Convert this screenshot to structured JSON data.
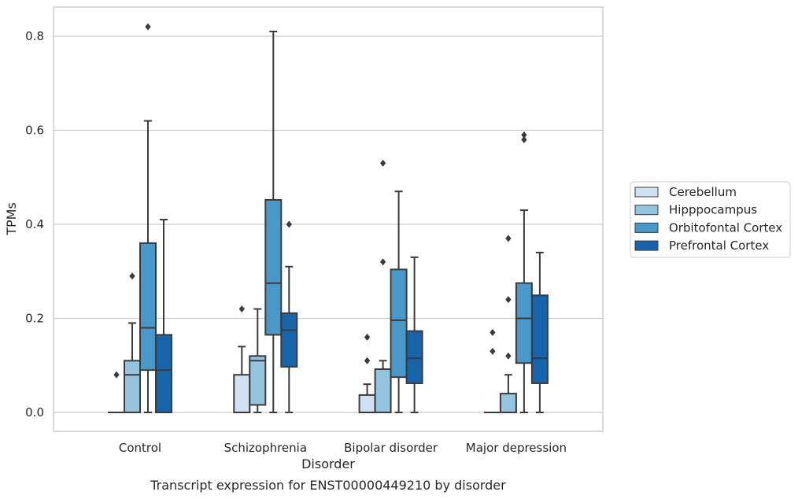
{
  "chart_data": {
    "type": "box",
    "xlabel": "Disorder",
    "ylabel": "TPMs",
    "caption": "Transcript expression for ENST00000449210 by disorder",
    "ylim": [
      -0.04,
      0.86
    ],
    "yticks": [
      0.0,
      0.2,
      0.4,
      0.6,
      0.8
    ],
    "ytick_labels": [
      "0.0",
      "0.2",
      "0.4",
      "0.6",
      "0.8"
    ],
    "grid": true,
    "legend_position": "right",
    "categories": [
      "Control",
      "Schizophrenia",
      "Bipolar disorder",
      "Major depression"
    ],
    "series": [
      {
        "name": "Cerebellum",
        "color": "#d0e1f2",
        "boxes": [
          {
            "whislo": 0,
            "q1": 0,
            "med": 0,
            "q3": 0,
            "whishi": 0,
            "fliers": [
              0.08
            ]
          },
          {
            "whislo": 0,
            "q1": 0,
            "med": 0,
            "q3": 0.08,
            "whishi": 0.14,
            "fliers": [
              0.22
            ]
          },
          {
            "whislo": 0,
            "q1": 0,
            "med": 0,
            "q3": 0.037,
            "whishi": 0.06,
            "fliers": [
              0.11,
              0.16
            ]
          },
          {
            "whislo": 0,
            "q1": 0,
            "med": 0,
            "q3": 0,
            "whishi": 0,
            "fliers": [
              0.13,
              0.17
            ]
          }
        ]
      },
      {
        "name": "Hipppocampus",
        "color": "#94c4df",
        "boxes": [
          {
            "whislo": 0,
            "q1": 0,
            "med": 0.08,
            "q3": 0.11,
            "whishi": 0.19,
            "fliers": [
              0.29
            ]
          },
          {
            "whislo": 0,
            "q1": 0.016,
            "med": 0.11,
            "q3": 0.12,
            "whishi": 0.22,
            "fliers": []
          },
          {
            "whislo": 0,
            "q1": 0,
            "med": 0,
            "q3": 0.092,
            "whishi": 0.11,
            "fliers": [
              0.32,
              0.53
            ]
          },
          {
            "whislo": 0,
            "q1": 0,
            "med": 0,
            "q3": 0.04,
            "whishi": 0.08,
            "fliers": [
              0.12,
              0.24,
              0.37
            ]
          }
        ]
      },
      {
        "name": "Orbitofontal Cortex",
        "color": "#4a98c9",
        "boxes": [
          {
            "whislo": 0,
            "q1": 0.09,
            "med": 0.18,
            "q3": 0.36,
            "whishi": 0.62,
            "fliers": [
              0.82
            ]
          },
          {
            "whislo": 0,
            "q1": 0.165,
            "med": 0.275,
            "q3": 0.452,
            "whishi": 0.81,
            "fliers": []
          },
          {
            "whislo": 0,
            "q1": 0.075,
            "med": 0.196,
            "q3": 0.304,
            "whishi": 0.47,
            "fliers": []
          },
          {
            "whislo": 0,
            "q1": 0.105,
            "med": 0.2,
            "q3": 0.275,
            "whishi": 0.43,
            "fliers": [
              0.58,
              0.59
            ]
          }
        ]
      },
      {
        "name": "Prefrontal Cortex",
        "color": "#1764ab",
        "boxes": [
          {
            "whislo": 0,
            "q1": 0,
            "med": 0.09,
            "q3": 0.165,
            "whishi": 0.41,
            "fliers": []
          },
          {
            "whislo": 0,
            "q1": 0.097,
            "med": 0.175,
            "q3": 0.211,
            "whishi": 0.31,
            "fliers": [
              0.4
            ]
          },
          {
            "whislo": 0,
            "q1": 0.062,
            "med": 0.115,
            "q3": 0.173,
            "whishi": 0.33,
            "fliers": []
          },
          {
            "whislo": 0,
            "q1": 0.062,
            "med": 0.115,
            "q3": 0.249,
            "whishi": 0.34,
            "fliers": []
          }
        ]
      }
    ]
  },
  "colors": {
    "box_edge": "#3b3b3b",
    "grid": "#cccccc",
    "frame": "#cccccc",
    "text": "#262626"
  }
}
